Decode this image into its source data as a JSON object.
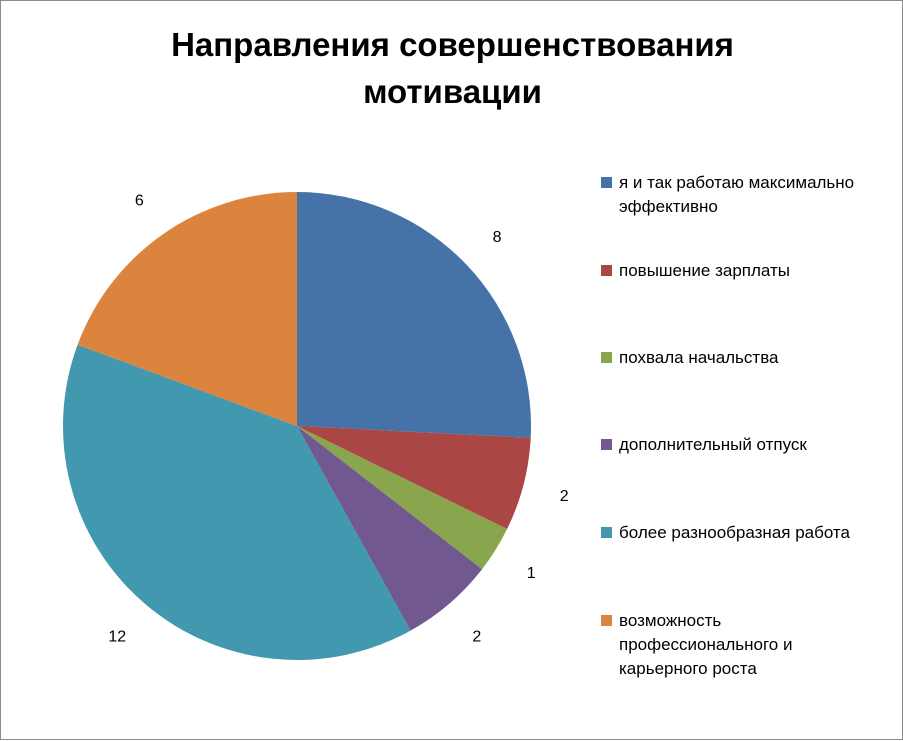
{
  "chart_data": {
    "type": "pie",
    "title_lines": [
      "Направления совершенствования",
      "мотивации"
    ],
    "categories": [
      "я и так работаю максимально эффективно",
      "повышение зарплаты",
      "похвала начальства",
      "дополнительный отпуск",
      "более разнообразная работа",
      "возможность профессионального и карьерного роста"
    ],
    "values": [
      8,
      2,
      1,
      2,
      12,
      6
    ],
    "colors": [
      "#4572A7",
      "#AA4643",
      "#89A54E",
      "#71588F",
      "#4198AF",
      "#DB843D"
    ],
    "legend_position": "right",
    "start_angle": "top, clockwise",
    "data_labels": "outside"
  }
}
